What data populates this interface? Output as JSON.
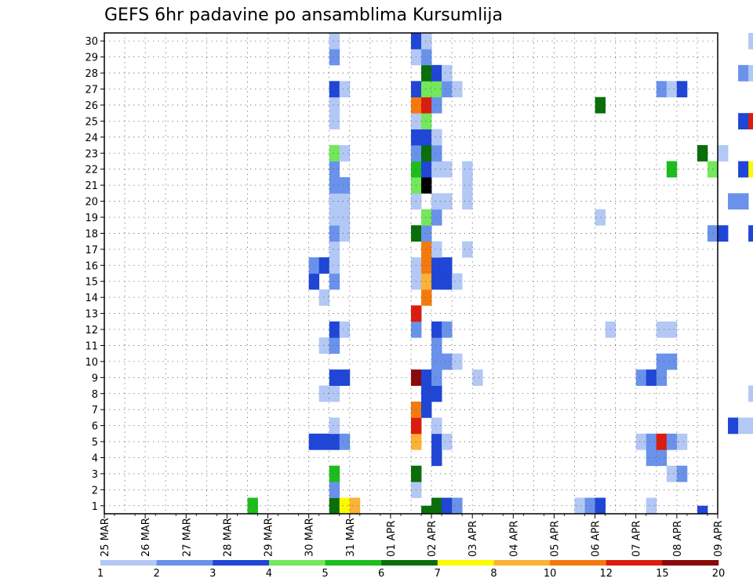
{
  "chart_data": {
    "type": "heatmap",
    "title": "GEFS 6hr padavine po ansamblima Kursumlija",
    "y_members": [
      "1",
      "2",
      "3",
      "4",
      "5",
      "6",
      "7",
      "8",
      "9",
      "10",
      "11",
      "12",
      "13",
      "14",
      "15",
      "16",
      "17",
      "18",
      "19",
      "20",
      "21",
      "22",
      "23",
      "24",
      "25",
      "26",
      "27",
      "28",
      "29",
      "30"
    ],
    "x_ticks": [
      "25 MAR",
      "26 MAR",
      "27 MAR",
      "28 MAR",
      "29 MAR",
      "30 MAR",
      "31 MAR",
      "01 APR",
      "02 APR",
      "03 APR",
      "04 APR",
      "05 APR",
      "06 APR",
      "07 APR",
      "08 APR",
      "09 APR"
    ],
    "x_range_days": [
      0,
      15
    ],
    "y_range": [
      0.5,
      30.5
    ],
    "grid": true,
    "colorbar": {
      "levels": [
        "1",
        "2",
        "3",
        "4",
        "5",
        "6",
        "7",
        "8",
        "10",
        "12",
        "15",
        "20"
      ],
      "colors": [
        "#b3c8f5",
        "#6a92eb",
        "#1f46d6",
        "#72e85a",
        "#1cbd1c",
        "#0a6e0a",
        "#fbfb00",
        "#fbb236",
        "#f57a0c",
        "#db1c0e",
        "#8a0a0a"
      ]
    },
    "cells": [
      [
        3.5,
        1,
        5
      ],
      [
        5.5,
        1,
        6
      ],
      [
        5.75,
        1,
        7
      ],
      [
        6,
        1,
        8
      ],
      [
        8.0,
        1,
        6
      ],
      [
        8.25,
        1,
        3
      ],
      [
        8.5,
        1,
        2
      ],
      [
        11.5,
        1,
        1
      ],
      [
        11.75,
        1,
        2
      ],
      [
        12.0,
        1,
        3
      ],
      [
        13.25,
        1,
        1
      ],
      [
        17.25,
        1,
        1
      ],
      [
        17.5,
        1,
        1
      ],
      [
        17.75,
        1,
        1
      ],
      [
        18.0,
        1,
        1
      ],
      [
        18.25,
        1,
        1
      ],
      [
        19.5,
        1,
        2
      ],
      [
        19.75,
        1,
        3
      ],
      [
        20.25,
        1,
        1
      ],
      [
        23.5,
        1,
        3
      ],
      [
        24.5,
        1,
        1
      ],
      [
        25.25,
        1,
        1
      ],
      [
        25.5,
        1,
        1
      ],
      [
        5.5,
        2,
        2
      ],
      [
        7.5,
        2,
        1
      ],
      [
        19.25,
        2,
        1
      ],
      [
        19.5,
        2,
        1
      ],
      [
        22.5,
        2,
        2
      ],
      [
        5.5,
        3,
        5
      ],
      [
        7.5,
        3,
        6
      ],
      [
        13.75,
        3,
        1
      ],
      [
        14.0,
        3,
        2
      ],
      [
        8.0,
        4,
        3
      ],
      [
        13.25,
        4,
        2
      ],
      [
        13.5,
        4,
        2
      ],
      [
        16.25,
        4,
        1
      ],
      [
        17.75,
        4,
        1
      ],
      [
        5.0,
        5,
        3
      ],
      [
        5.25,
        5,
        3
      ],
      [
        5.5,
        5,
        3
      ],
      [
        5.75,
        5,
        2
      ],
      [
        7.5,
        5,
        8
      ],
      [
        8.0,
        5,
        3
      ],
      [
        8.25,
        5,
        1
      ],
      [
        13.0,
        5,
        1
      ],
      [
        13.25,
        5,
        2
      ],
      [
        13.5,
        5,
        10
      ],
      [
        13.75,
        5,
        2
      ],
      [
        14.0,
        5,
        1
      ],
      [
        17.5,
        5,
        11
      ],
      [
        17.75,
        5,
        2
      ],
      [
        20.25,
        5,
        2
      ],
      [
        20.5,
        5,
        2
      ],
      [
        20.75,
        5,
        4
      ],
      [
        21.0,
        5,
        8
      ],
      [
        21.25,
        5,
        9
      ],
      [
        21.5,
        5,
        5
      ],
      [
        21.75,
        5,
        8
      ],
      [
        22.0,
        5,
        3
      ],
      [
        22.25,
        5,
        2
      ],
      [
        22.5,
        5,
        1
      ],
      [
        5.5,
        6,
        1
      ],
      [
        7.5,
        6,
        10
      ],
      [
        8.0,
        6,
        1
      ],
      [
        15.25,
        6,
        3
      ],
      [
        15.5,
        6,
        1
      ],
      [
        15.75,
        6,
        1
      ],
      [
        16.0,
        6,
        1
      ],
      [
        16.25,
        6,
        2
      ],
      [
        16.5,
        6,
        3
      ],
      [
        18.25,
        6,
        1
      ],
      [
        18.5,
        6,
        1
      ],
      [
        18.75,
        6,
        1
      ],
      [
        19.75,
        6,
        1
      ],
      [
        20.75,
        6,
        3
      ],
      [
        21.0,
        6,
        3
      ],
      [
        7.5,
        7,
        9
      ],
      [
        7.75,
        7,
        3
      ],
      [
        17.25,
        7,
        9
      ],
      [
        17.5,
        7,
        12
      ],
      [
        17.75,
        7,
        13
      ],
      [
        18.0,
        7,
        2
      ],
      [
        18.25,
        7,
        11
      ],
      [
        18.5,
        7,
        1
      ],
      [
        19.5,
        7,
        3
      ],
      [
        19.75,
        7,
        3
      ],
      [
        20.0,
        7,
        2
      ],
      [
        20.25,
        7,
        1
      ],
      [
        5.25,
        8,
        1
      ],
      [
        5.5,
        8,
        1
      ],
      [
        7.75,
        8,
        3
      ],
      [
        8.0,
        8,
        3
      ],
      [
        15.75,
        8,
        1
      ],
      [
        16.25,
        8,
        1
      ],
      [
        17.25,
        8,
        1
      ],
      [
        5.5,
        9,
        3
      ],
      [
        5.75,
        9,
        3
      ],
      [
        7.5,
        9,
        11
      ],
      [
        7.75,
        9,
        3
      ],
      [
        8.0,
        9,
        2
      ],
      [
        9.0,
        9,
        1
      ],
      [
        13.0,
        9,
        2
      ],
      [
        13.25,
        9,
        3
      ],
      [
        13.5,
        9,
        2
      ],
      [
        20.25,
        9,
        1
      ],
      [
        20.5,
        9,
        1
      ],
      [
        25.25,
        9,
        5
      ],
      [
        8.0,
        10,
        2
      ],
      [
        8.25,
        10,
        2
      ],
      [
        8.5,
        10,
        1
      ],
      [
        13.5,
        10,
        2
      ],
      [
        13.75,
        10,
        2
      ],
      [
        24.75,
        10,
        1
      ],
      [
        25.0,
        10,
        4
      ],
      [
        25.25,
        10,
        2
      ],
      [
        25.5,
        10,
        2
      ],
      [
        5.25,
        11,
        1
      ],
      [
        5.5,
        11,
        2
      ],
      [
        8.0,
        11,
        2
      ],
      [
        17.25,
        11,
        1
      ],
      [
        17.5,
        11,
        3
      ],
      [
        19.0,
        11,
        4
      ],
      [
        19.25,
        11,
        6
      ],
      [
        19.5,
        11,
        1
      ],
      [
        20.25,
        11,
        1
      ],
      [
        21.25,
        11,
        1
      ],
      [
        5.5,
        12,
        3
      ],
      [
        5.75,
        12,
        1
      ],
      [
        7.5,
        12,
        2
      ],
      [
        8.0,
        12,
        3
      ],
      [
        8.25,
        12,
        2
      ],
      [
        12.25,
        12,
        1
      ],
      [
        13.5,
        12,
        1
      ],
      [
        13.75,
        12,
        1
      ],
      [
        16.25,
        12,
        1
      ],
      [
        17.5,
        12,
        13
      ],
      [
        19.75,
        12,
        1
      ],
      [
        20.0,
        12,
        6
      ],
      [
        20.25,
        12,
        1
      ],
      [
        20.5,
        12,
        2
      ],
      [
        25.25,
        12,
        4
      ],
      [
        25.5,
        12,
        12
      ],
      [
        7.5,
        13,
        10
      ],
      [
        16.25,
        13,
        1
      ],
      [
        16.5,
        13,
        6
      ],
      [
        5.25,
        14,
        1
      ],
      [
        7.75,
        14,
        9
      ],
      [
        16.25,
        14,
        1
      ],
      [
        5.0,
        15,
        3
      ],
      [
        5.5,
        15,
        2
      ],
      [
        7.5,
        15,
        1
      ],
      [
        7.75,
        15,
        8
      ],
      [
        8.0,
        15,
        3
      ],
      [
        8.25,
        15,
        3
      ],
      [
        8.5,
        15,
        1
      ],
      [
        16.0,
        15,
        9
      ],
      [
        16.25,
        15,
        4
      ],
      [
        16.5,
        15,
        1
      ],
      [
        20.25,
        15,
        4
      ],
      [
        20.5,
        15,
        3
      ],
      [
        20.75,
        15,
        1
      ],
      [
        21.0,
        15,
        1
      ],
      [
        5.0,
        16,
        2
      ],
      [
        5.25,
        16,
        3
      ],
      [
        5.5,
        16,
        1
      ],
      [
        7.5,
        16,
        1
      ],
      [
        7.75,
        16,
        9
      ],
      [
        8.0,
        16,
        3
      ],
      [
        8.25,
        16,
        3
      ],
      [
        18.75,
        16,
        1
      ],
      [
        19.25,
        16,
        1
      ],
      [
        20.5,
        16,
        3
      ],
      [
        5.5,
        17,
        1
      ],
      [
        7.75,
        17,
        9
      ],
      [
        8.0,
        17,
        1
      ],
      [
        8.75,
        17,
        1
      ],
      [
        16.25,
        17,
        3
      ],
      [
        17.5,
        17,
        2
      ],
      [
        19.25,
        17,
        5
      ],
      [
        19.5,
        17,
        1
      ],
      [
        19.75,
        17,
        1
      ],
      [
        5.5,
        18,
        2
      ],
      [
        5.75,
        18,
        1
      ],
      [
        7.5,
        18,
        6
      ],
      [
        7.75,
        18,
        2
      ],
      [
        14.75,
        18,
        2
      ],
      [
        15.0,
        18,
        3
      ],
      [
        15.75,
        18,
        3
      ],
      [
        16.0,
        18,
        1
      ],
      [
        16.25,
        18,
        2
      ],
      [
        16.5,
        18,
        12
      ],
      [
        16.75,
        18,
        3
      ],
      [
        17.0,
        18,
        1
      ],
      [
        19.5,
        18,
        6
      ],
      [
        20.0,
        18,
        1
      ],
      [
        20.25,
        18,
        1
      ],
      [
        20.5,
        18,
        5
      ],
      [
        20.75,
        18,
        1
      ],
      [
        21.0,
        18,
        1
      ],
      [
        22.75,
        18,
        11
      ],
      [
        23.0,
        18,
        8
      ],
      [
        23.25,
        18,
        1
      ],
      [
        5.5,
        19,
        1
      ],
      [
        5.75,
        19,
        1
      ],
      [
        7.75,
        19,
        4
      ],
      [
        8.0,
        19,
        2
      ],
      [
        12.0,
        19,
        1
      ],
      [
        17.75,
        19,
        2
      ],
      [
        19.75,
        19,
        1
      ],
      [
        20.25,
        19,
        1
      ],
      [
        20.5,
        19,
        4
      ],
      [
        20.75,
        19,
        1
      ],
      [
        21.0,
        19,
        1
      ],
      [
        25.5,
        19,
        2
      ],
      [
        5.5,
        20,
        1
      ],
      [
        5.75,
        20,
        1
      ],
      [
        7.5,
        20,
        1
      ],
      [
        8.0,
        20,
        1
      ],
      [
        8.25,
        20,
        1
      ],
      [
        8.75,
        20,
        1
      ],
      [
        15.25,
        20,
        2
      ],
      [
        15.5,
        20,
        2
      ],
      [
        19.75,
        20,
        2
      ],
      [
        20.0,
        20,
        6
      ],
      [
        20.25,
        20,
        3
      ],
      [
        20.5,
        20,
        8
      ],
      [
        20.75,
        20,
        11
      ],
      [
        21.0,
        20,
        10
      ],
      [
        21.25,
        20,
        6
      ],
      [
        21.5,
        20,
        1
      ],
      [
        5.5,
        21,
        2
      ],
      [
        5.75,
        21,
        2
      ],
      [
        7.5,
        21,
        4
      ],
      [
        7.75,
        21,
        13
      ],
      [
        8.75,
        21,
        1
      ],
      [
        17.25,
        21,
        1
      ],
      [
        17.75,
        21,
        1
      ],
      [
        18.25,
        21,
        2
      ],
      [
        18.5,
        21,
        2
      ],
      [
        18.75,
        21,
        3
      ],
      [
        22.75,
        21,
        1
      ],
      [
        5.5,
        22,
        2
      ],
      [
        7.5,
        22,
        5
      ],
      [
        7.75,
        22,
        3
      ],
      [
        8.0,
        22,
        1
      ],
      [
        8.25,
        22,
        1
      ],
      [
        8.75,
        22,
        1
      ],
      [
        13.75,
        22,
        5
      ],
      [
        14.75,
        22,
        4
      ],
      [
        15.5,
        22,
        3
      ],
      [
        15.75,
        22,
        7
      ],
      [
        16.25,
        22,
        2
      ],
      [
        16.5,
        22,
        3
      ],
      [
        17.25,
        22,
        5
      ],
      [
        17.5,
        22,
        1
      ],
      [
        5.5,
        23,
        4
      ],
      [
        5.75,
        23,
        1
      ],
      [
        7.5,
        23,
        2
      ],
      [
        7.75,
        23,
        6
      ],
      [
        8.0,
        23,
        2
      ],
      [
        14.5,
        23,
        6
      ],
      [
        15.0,
        23,
        1
      ],
      [
        17.25,
        23,
        7
      ],
      [
        18.0,
        23,
        2
      ],
      [
        18.25,
        23,
        1
      ],
      [
        21.75,
        23,
        1
      ],
      [
        22.0,
        23,
        5
      ],
      [
        22.25,
        23,
        6
      ],
      [
        7.5,
        24,
        3
      ],
      [
        7.75,
        24,
        3
      ],
      [
        8.0,
        24,
        1
      ],
      [
        17.25,
        24,
        4
      ],
      [
        19.75,
        24,
        1
      ],
      [
        21.25,
        24,
        1
      ],
      [
        21.5,
        24,
        4
      ],
      [
        21.75,
        24,
        4
      ],
      [
        22.0,
        24,
        1
      ],
      [
        5.5,
        25,
        1
      ],
      [
        7.5,
        25,
        1
      ],
      [
        7.75,
        25,
        4
      ],
      [
        15.5,
        25,
        3
      ],
      [
        15.75,
        25,
        10
      ],
      [
        16.0,
        25,
        4
      ],
      [
        16.25,
        25,
        1
      ],
      [
        16.5,
        25,
        2
      ],
      [
        16.75,
        25,
        1
      ],
      [
        17.0,
        25,
        1
      ],
      [
        18.5,
        25,
        1
      ],
      [
        18.75,
        25,
        1
      ],
      [
        19.0,
        25,
        1
      ],
      [
        19.25,
        25,
        1
      ],
      [
        19.75,
        25,
        1
      ],
      [
        20.0,
        25,
        3
      ],
      [
        5.5,
        26,
        1
      ],
      [
        7.5,
        26,
        9
      ],
      [
        7.75,
        26,
        10
      ],
      [
        8.0,
        26,
        2
      ],
      [
        12.0,
        26,
        6
      ],
      [
        18.25,
        26,
        1
      ],
      [
        18.5,
        26,
        2
      ],
      [
        18.75,
        26,
        1
      ],
      [
        19.5,
        26,
        3
      ],
      [
        19.75,
        26,
        1
      ],
      [
        5.5,
        27,
        3
      ],
      [
        5.75,
        27,
        1
      ],
      [
        7.5,
        27,
        3
      ],
      [
        7.75,
        27,
        4
      ],
      [
        8.0,
        27,
        4
      ],
      [
        8.25,
        27,
        2
      ],
      [
        8.5,
        27,
        1
      ],
      [
        13.5,
        27,
        2
      ],
      [
        13.75,
        27,
        1
      ],
      [
        14.0,
        27,
        3
      ],
      [
        16.25,
        27,
        3
      ],
      [
        17.25,
        27,
        2
      ],
      [
        17.5,
        27,
        2
      ],
      [
        17.75,
        27,
        4
      ],
      [
        18.0,
        27,
        1
      ],
      [
        7.75,
        28,
        6
      ],
      [
        8.0,
        28,
        3
      ],
      [
        8.25,
        28,
        1
      ],
      [
        15.5,
        28,
        2
      ],
      [
        15.75,
        28,
        1
      ],
      [
        5.5,
        29,
        2
      ],
      [
        7.5,
        29,
        1
      ],
      [
        7.75,
        29,
        2
      ],
      [
        19.5,
        29,
        1
      ],
      [
        5.5,
        30,
        1
      ],
      [
        7.5,
        30,
        3
      ],
      [
        7.75,
        30,
        1
      ],
      [
        15.75,
        30,
        1
      ],
      [
        16.0,
        30,
        3
      ],
      [
        17.0,
        30,
        1
      ],
      [
        17.25,
        30,
        3
      ],
      [
        17.5,
        30,
        4
      ],
      [
        17.75,
        30,
        3
      ],
      [
        18.0,
        30,
        9
      ],
      [
        19.5,
        30,
        2
      ],
      [
        7.75,
        0.5,
        6
      ],
      [
        14.5,
        0.5,
        3
      ],
      [
        17.0,
        0.5,
        2
      ],
      [
        20.0,
        0.5,
        2
      ],
      [
        21.5,
        0.5,
        1
      ]
    ]
  }
}
